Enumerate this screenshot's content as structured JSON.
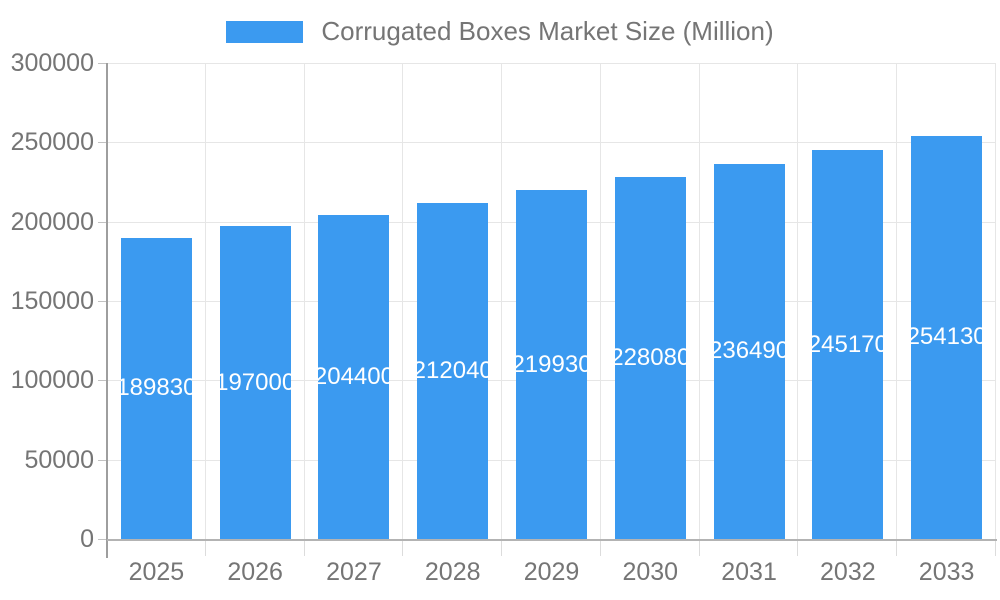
{
  "legend": {
    "label": "Corrugated Boxes Market Size (Million)",
    "swatch_color": "#3b9af0"
  },
  "chart_data": {
    "type": "bar",
    "title": "Corrugated Boxes Market Size (Million)",
    "categories": [
      "2025",
      "2026",
      "2027",
      "2028",
      "2029",
      "2030",
      "2031",
      "2032",
      "2033"
    ],
    "values": [
      189830,
      197000,
      204400,
      212040,
      219930,
      228080,
      236490,
      245170,
      254130
    ],
    "bar_labels": [
      "189830",
      "197000",
      "204400",
      "212040",
      "219930",
      "228080",
      "236490",
      "245170",
      "254130"
    ],
    "xlabel": "",
    "ylabel": "",
    "ylim": [
      0,
      300000
    ],
    "y_ticks": [
      0,
      50000,
      100000,
      150000,
      200000,
      250000,
      300000
    ],
    "y_tick_labels": [
      "0",
      "50000",
      "100000",
      "150000",
      "200000",
      "250000",
      "300000"
    ],
    "grid": true,
    "legend_position": "top",
    "bar_color": "#3b9af0",
    "bar_label_color": "#ffffff",
    "axis_text_color": "#757575",
    "background_color": "#ffffff"
  }
}
